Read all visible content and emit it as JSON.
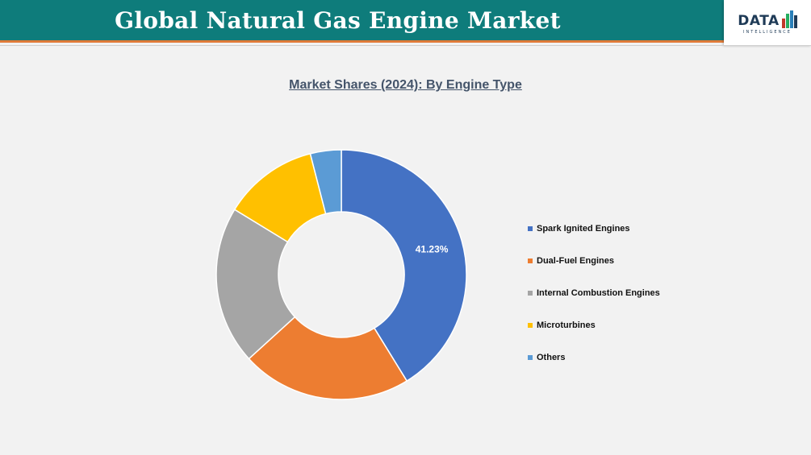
{
  "header": {
    "title": "Global Natural Gas Engine Market"
  },
  "logo": {
    "word": "DATA",
    "sub": "INTELLIGENCE",
    "bar_colors": [
      "#c0392b",
      "#27ae60",
      "#2980b9",
      "#1f3b57"
    ]
  },
  "colors": {
    "header_bg": "#0e7c7b",
    "header_accent": "#e07b39"
  },
  "chart_data": {
    "type": "pie",
    "donut": true,
    "title": "Market Shares (2024): By Engine Type",
    "categories": [
      "Spark Ignited Engines",
      "Dual-Fuel Engines",
      "Internal Combustion Engines",
      "Microturbines",
      "Others"
    ],
    "values": [
      41.23,
      22.0,
      20.5,
      12.27,
      4.0
    ],
    "colors": [
      "#4472c4",
      "#ed7d31",
      "#a5a5a5",
      "#ffc000",
      "#5b9bd5"
    ],
    "data_labels": [
      "41.23%",
      "",
      "",
      "",
      ""
    ],
    "legend": "right"
  }
}
